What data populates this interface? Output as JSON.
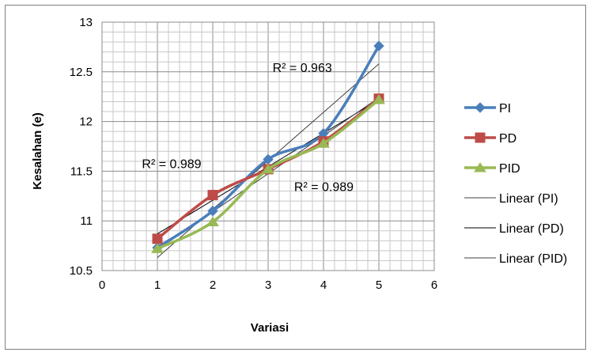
{
  "chart_data": {
    "type": "scatter",
    "xlabel": "Variasi",
    "ylabel": "Kesalahan (e)",
    "xlim": [
      0,
      6
    ],
    "ylim": [
      10.5,
      13
    ],
    "xticks": [
      "0",
      "1",
      "2",
      "3",
      "4",
      "5",
      "6"
    ],
    "yticks": [
      "10.5",
      "11",
      "11.5",
      "12",
      "12.5",
      "13"
    ],
    "grid": "on",
    "legend_position": "right",
    "series": [
      {
        "name": "PI",
        "color": "#4a7ebb",
        "marker": "diamond",
        "x": [
          1,
          2,
          3,
          4,
          5
        ],
        "y": [
          10.73,
          11.1,
          11.62,
          11.88,
          12.76
        ]
      },
      {
        "name": "PD",
        "color": "#be4b48",
        "marker": "square",
        "x": [
          1,
          2,
          3,
          4,
          5
        ],
        "y": [
          10.82,
          11.26,
          11.52,
          11.8,
          12.23
        ]
      },
      {
        "name": "PID",
        "color": "#98b954",
        "marker": "triangle",
        "x": [
          1,
          2,
          3,
          4,
          5
        ],
        "y": [
          10.72,
          10.99,
          11.52,
          11.78,
          12.22
        ]
      }
    ],
    "trendlines": [
      {
        "name": "Linear (PI)",
        "color": "#404040",
        "x": [
          1,
          5
        ],
        "y": [
          10.63,
          12.58
        ]
      },
      {
        "name": "Linear (PD)",
        "color": "#000000",
        "x": [
          1,
          5
        ],
        "y": [
          10.87,
          12.22
        ]
      },
      {
        "name": "Linear (PID)",
        "color": "#404040",
        "x": [
          1,
          5
        ],
        "y": [
          10.71,
          12.24
        ]
      }
    ],
    "annotations": [
      {
        "text": "R² = 0.963",
        "x": 3.08,
        "y": 12.5
      },
      {
        "text": "R² = 0.989",
        "x": 0.72,
        "y": 11.53
      },
      {
        "text": "R² = 0.989",
        "x": 3.47,
        "y": 11.3
      }
    ]
  }
}
